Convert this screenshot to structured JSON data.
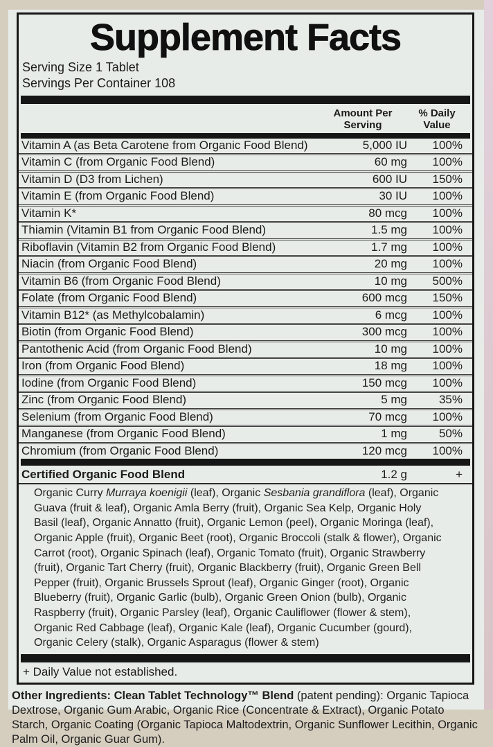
{
  "label": {
    "title": "Supplement Facts",
    "serving_size": "Serving Size 1 Tablet",
    "servings_per_container": "Servings Per Container 108",
    "header": {
      "amount_line1": "Amount Per",
      "amount_line2": "Serving",
      "dv_line1": "% Daily",
      "dv_line2": "Value"
    },
    "nutrients": [
      {
        "name": "Vitamin A (as Beta Carotene from Organic Food Blend)",
        "amount": "5,000 IU",
        "dv": "100%"
      },
      {
        "name": "Vitamin C (from Organic Food Blend)",
        "amount": "60 mg",
        "dv": "100%"
      },
      {
        "name": "Vitamin D (D3 from Lichen)",
        "amount": "600 IU",
        "dv": "150%"
      },
      {
        "name": "Vitamin E (from Organic Food Blend)",
        "amount": "30 IU",
        "dv": "100%"
      },
      {
        "name": "Vitamin K*",
        "amount": "80 mcg",
        "dv": "100%"
      },
      {
        "name": "Thiamin (Vitamin B1 from Organic Food Blend)",
        "amount": "1.5 mg",
        "dv": "100%"
      },
      {
        "name": "Riboflavin (Vitamin B2 from Organic Food Blend)",
        "amount": "1.7 mg",
        "dv": "100%"
      },
      {
        "name": "Niacin (from Organic Food Blend)",
        "amount": "20 mg",
        "dv": "100%"
      },
      {
        "name": "Vitamin B6 (from Organic Food Blend)",
        "amount": "10 mg",
        "dv": "500%"
      },
      {
        "name": "Folate (from Organic Food Blend)",
        "amount": "600 mcg",
        "dv": "150%"
      },
      {
        "name": "Vitamin B12* (as Methylcobalamin)",
        "amount": "6 mcg",
        "dv": "100%"
      },
      {
        "name": "Biotin (from Organic Food Blend)",
        "amount": "300 mcg",
        "dv": "100%"
      },
      {
        "name": "Pantothenic Acid (from Organic Food Blend)",
        "amount": "10 mg",
        "dv": "100%"
      },
      {
        "name": "Iron (from Organic Food Blend)",
        "amount": "18 mg",
        "dv": "100%"
      },
      {
        "name": "Iodine (from Organic Food Blend)",
        "amount": "150 mcg",
        "dv": "100%"
      },
      {
        "name": "Zinc (from Organic Food Blend)",
        "amount": "5 mg",
        "dv": "35%"
      },
      {
        "name": "Selenium (from Organic Food Blend)",
        "amount": "70 mcg",
        "dv": "100%"
      },
      {
        "name": "Manganese (from Organic Food Blend)",
        "amount": "1 mg",
        "dv": "50%"
      },
      {
        "name": "Chromium (from Organic Food Blend)",
        "amount": "120 mcg",
        "dv": "100%"
      }
    ],
    "blend": {
      "name": "Certified Organic Food Blend",
      "amount": "1.2 g",
      "dv": "+",
      "segments": [
        {
          "text": "Organic Curry ",
          "italic": false
        },
        {
          "text": "Murraya koenigii",
          "italic": true
        },
        {
          "text": " (leaf), Organic ",
          "italic": false
        },
        {
          "text": "Sesbania grandiflora",
          "italic": true
        },
        {
          "text": " (leaf), Organic Guava (fruit & leaf), Organic Amla Berry (fruit), Organic Sea Kelp, Organic Holy Basil (leaf), Organic Annatto (fruit), Organic Lemon (peel), Organic Moringa (leaf), Organic Apple (fruit), Organic Beet (root), Organic Broccoli (stalk & flower), Organic Carrot (root), Organic Spinach (leaf), Organic Tomato (fruit), Organic Strawberry (fruit), Organic Tart Cherry (fruit), Organic Blackberry (fruit), Organic Green Bell Pepper (fruit), Organic Brussels Sprout (leaf), Organic Ginger (root), Organic Blueberry (fruit), Organic Garlic (bulb), Organic Green Onion (bulb), Organic Raspberry (fruit), Organic Parsley (leaf), Organic Cauliflower (flower & stem), Organic Red Cabbage (leaf), Organic Kale (leaf), Organic Cucumber (gourd), Organic Celery (stalk), Organic Asparagus (flower & stem)",
          "italic": false
        }
      ]
    },
    "footnote": "+ Daily Value not established.",
    "other_ingredients": {
      "lead": "Other Ingredients: Clean Tablet Technology™ Blend",
      "rest": " (patent pending): Organic Tapioca Dextrose, Organic Gum Arabic, Organic Rice (Concentrate & Extract), Organic Potato Starch, Organic Coating (Organic Tapioca Maltodextrin, Organic Sunflower Lecithin, Organic Palm Oil, Organic Guar Gum)."
    },
    "colors": {
      "packaging_bg": "#d5cebf",
      "label_bg": "#e8ece9",
      "strip_top": "#e2d0dc",
      "strip_bottom": "#d8c4c6",
      "bar": "#161616",
      "ink": "#1b1b1b"
    }
  }
}
